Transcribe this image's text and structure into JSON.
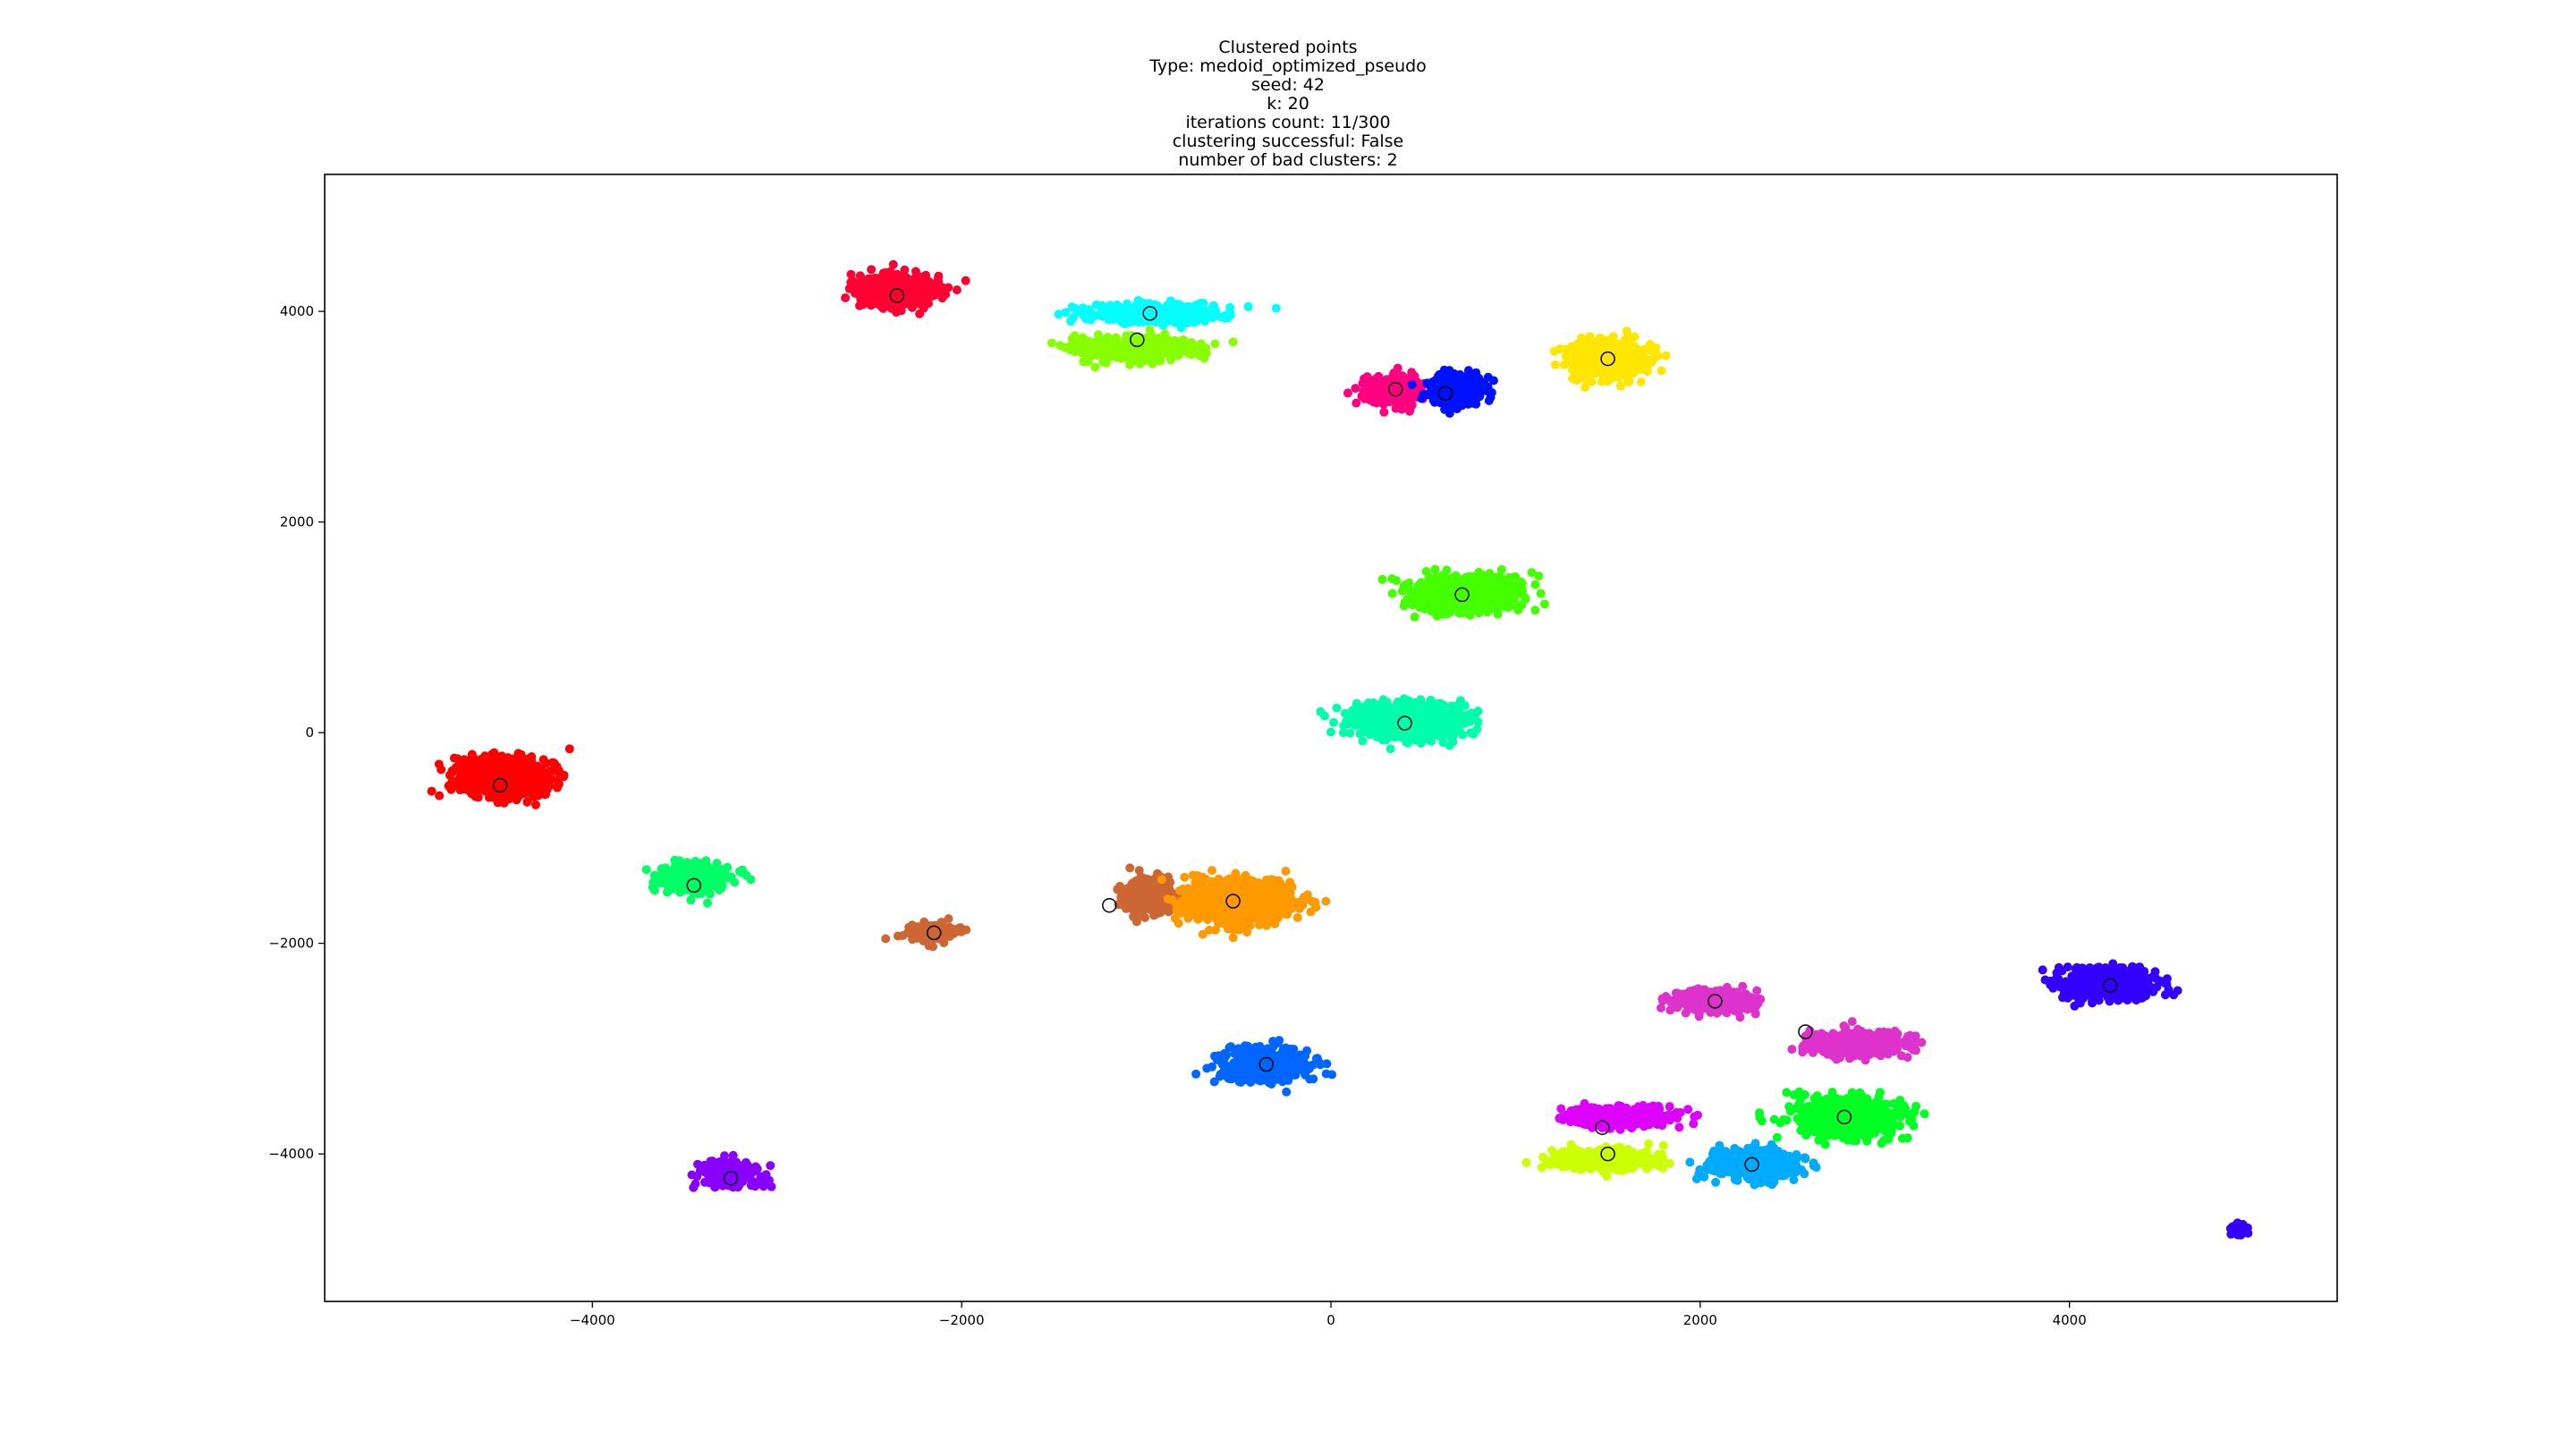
{
  "chart_data": {
    "type": "scatter",
    "title_lines": [
      "Clustered points",
      "Type: medoid_optimized_pseudo",
      "seed: 42",
      "k: 20",
      "iterations count: 11/300",
      "clustering successful: False",
      "number of bad clusters: 2"
    ],
    "xlabel": "",
    "ylabel": "",
    "xlim": [
      -5450,
      5450
    ],
    "ylim": [
      -5400,
      5300
    ],
    "x_ticks": [
      -4000,
      -2000,
      0,
      2000,
      4000
    ],
    "x_tick_labels": [
      "−4000",
      "−2000",
      "0",
      "2000",
      "4000"
    ],
    "y_ticks": [
      -4000,
      -2000,
      0,
      2000,
      4000
    ],
    "y_tick_labels": [
      "−4000",
      "−2000",
      "0",
      "2000",
      "4000"
    ],
    "grid": false,
    "legend": "none",
    "medoid_marker": "hollow circle, black edge",
    "clusters": [
      {
        "color": "#ff0033",
        "center": [
          -2350,
          4200
        ],
        "spread": [
          280,
          220
        ],
        "medoid": [
          -2350,
          4150
        ]
      },
      {
        "color": "#00ffff",
        "center": [
          -980,
          3980
        ],
        "spread": [
          480,
          110
        ],
        "medoid": [
          -980,
          3980
        ]
      },
      {
        "color": "#88ff00",
        "center": [
          -1050,
          3650
        ],
        "spread": [
          420,
          140
        ],
        "medoid": [
          -1050,
          3730
        ]
      },
      {
        "color": "#ff0080",
        "center": [
          330,
          3250
        ],
        "spread": [
          200,
          190
        ],
        "medoid": [
          350,
          3260
        ]
      },
      {
        "color": "#0011ff",
        "center": [
          680,
          3250
        ],
        "spread": [
          200,
          190
        ],
        "medoid": [
          620,
          3220
        ]
      },
      {
        "color": "#ffe600",
        "center": [
          1500,
          3550
        ],
        "spread": [
          270,
          230
        ],
        "medoid": [
          1500,
          3550
        ]
      },
      {
        "color": "#44ff00",
        "center": [
          720,
          1320
        ],
        "spread": [
          370,
          220
        ],
        "medoid": [
          710,
          1310
        ]
      },
      {
        "color": "#00ffaa",
        "center": [
          430,
          120
        ],
        "spread": [
          400,
          220
        ],
        "medoid": [
          400,
          90
        ]
      },
      {
        "color": "#ff0000",
        "center": [
          -4480,
          -420
        ],
        "spread": [
          320,
          250
        ],
        "medoid": [
          -4500,
          -500
        ]
      },
      {
        "color": "#00ff66",
        "center": [
          -3450,
          -1380
        ],
        "spread": [
          240,
          170
        ],
        "medoid": [
          -3450,
          -1450
        ]
      },
      {
        "color": "#cc6633",
        "center": [
          -2150,
          -1900
        ],
        "spread": [
          180,
          110
        ],
        "medoid": [
          -2150,
          -1900
        ]
      },
      {
        "color": "#cc6633",
        "center": [
          -1000,
          -1550
        ],
        "spread": [
          180,
          220
        ],
        "medoid": [
          -1200,
          -1640
        ]
      },
      {
        "color": "#ff9900",
        "center": [
          -500,
          -1600
        ],
        "spread": [
          370,
          270
        ],
        "medoid": [
          -530,
          -1600
        ]
      },
      {
        "color": "#0066ff",
        "center": [
          -350,
          -3150
        ],
        "spread": [
          290,
          200
        ],
        "medoid": [
          -350,
          -3150
        ]
      },
      {
        "color": "#8800ff",
        "center": [
          -3250,
          -4200
        ],
        "spread": [
          200,
          160
        ],
        "medoid": [
          -3250,
          -4230
        ]
      },
      {
        "color": "#dd33cc",
        "center": [
          2080,
          -2550
        ],
        "spread": [
          290,
          140
        ],
        "medoid": [
          2080,
          -2550
        ]
      },
      {
        "color": "#dd33cc",
        "center": [
          2850,
          -2950
        ],
        "spread": [
          340,
          150
        ],
        "medoid": [
          2570,
          -2840
        ]
      },
      {
        "color": "#dd00ff",
        "center": [
          1550,
          -3650
        ],
        "spread": [
          380,
          130
        ],
        "medoid": [
          1470,
          -3750
        ]
      },
      {
        "color": "#ccff00",
        "center": [
          1500,
          -4050
        ],
        "spread": [
          360,
          130
        ],
        "medoid": [
          1500,
          -4000
        ]
      },
      {
        "color": "#00aaff",
        "center": [
          2300,
          -4100
        ],
        "spread": [
          320,
          190
        ],
        "medoid": [
          2280,
          -4100
        ]
      },
      {
        "color": "#00ff22",
        "center": [
          2800,
          -3650
        ],
        "spread": [
          380,
          230
        ],
        "medoid": [
          2780,
          -3650
        ]
      },
      {
        "color": "#3300ff",
        "center": [
          4220,
          -2380
        ],
        "spread": [
          340,
          180
        ],
        "medoid": [
          4220,
          -2400
        ]
      },
      {
        "color": "#3300ff",
        "center": [
          4920,
          -4720
        ],
        "spread": [
          70,
          70
        ],
        "medoid": null
      }
    ]
  }
}
